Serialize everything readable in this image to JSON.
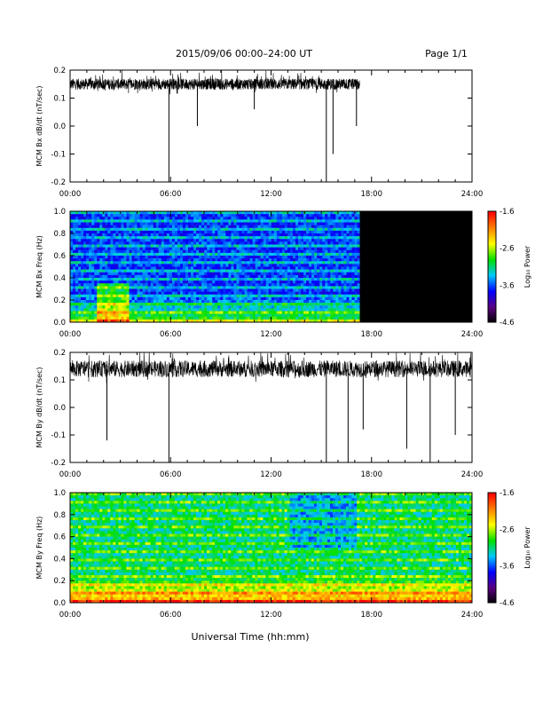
{
  "header": {
    "title": "2015/09/06  00:00–24:00 UT",
    "page": "Page 1/1"
  },
  "footer": {
    "xlabel": "Universal Time (hh:mm)"
  },
  "time_ticks": [
    "00:00",
    "06:00",
    "12:00",
    "18:00",
    "24:00"
  ],
  "colorbar": {
    "label": "Log₁₀ Power",
    "tick_labels": [
      "-1.6",
      "-2.6",
      "-3.6",
      "-4.6"
    ],
    "colors": [
      "#000000",
      "#5a0080",
      "#0000ff",
      "#00c8ff",
      "#00e000",
      "#ffff00",
      "#ff8000",
      "#ff0000"
    ]
  },
  "chart_data": [
    {
      "type": "line",
      "ylabel": "MCM Bx dB/dt (nT/sec)",
      "xlim": [
        0,
        24
      ],
      "ylim": [
        -0.2,
        0.2
      ],
      "yticks": [
        "0.2",
        "0.1",
        "0.0",
        "-0.1",
        "-0.2"
      ],
      "data_end_hour": 17.3,
      "baseline": 0.15,
      "noise": 0.02,
      "spikes": [
        {
          "hour": 5.9,
          "value": -0.2
        },
        {
          "hour": 7.6,
          "value": 0.0
        },
        {
          "hour": 11.0,
          "value": 0.06
        },
        {
          "hour": 15.3,
          "value": -0.2
        },
        {
          "hour": 15.7,
          "value": -0.1
        },
        {
          "hour": 17.1,
          "value": 0.0
        }
      ]
    },
    {
      "type": "heatmap",
      "ylabel": "MCM Bx Freq (Hz)",
      "xlim": [
        0,
        24
      ],
      "ylim": [
        0,
        1
      ],
      "yticks": [
        "1.0",
        "0.8",
        "0.6",
        "0.4",
        "0.2",
        "0.0"
      ],
      "data_end_hour": 17.3,
      "zlim": [
        -4.6,
        -1.6
      ],
      "zlabel": "Log₁₀ Power"
    },
    {
      "type": "line",
      "ylabel": "MCM By dB/dt (nT/sec)",
      "xlim": [
        0,
        24
      ],
      "ylim": [
        -0.2,
        0.2
      ],
      "yticks": [
        "0.2",
        "0.1",
        "0.0",
        "-0.1",
        "-0.2"
      ],
      "data_end_hour": 24,
      "baseline": 0.14,
      "noise": 0.03,
      "spikes": [
        {
          "hour": 2.2,
          "value": -0.12
        },
        {
          "hour": 5.9,
          "value": -0.2
        },
        {
          "hour": 15.3,
          "value": -0.2
        },
        {
          "hour": 16.6,
          "value": -0.2
        },
        {
          "hour": 17.5,
          "value": -0.08
        },
        {
          "hour": 20.1,
          "value": -0.15
        },
        {
          "hour": 21.5,
          "value": -0.2
        },
        {
          "hour": 23.0,
          "value": -0.1
        }
      ]
    },
    {
      "type": "heatmap",
      "ylabel": "MCM By Freq (Hz)",
      "xlim": [
        0,
        24
      ],
      "ylim": [
        0,
        1
      ],
      "yticks": [
        "1.0",
        "0.8",
        "0.6",
        "0.4",
        "0.2",
        "0.0"
      ],
      "data_end_hour": 24,
      "zlim": [
        -4.6,
        -1.6
      ],
      "zlabel": "Log₁₀ Power"
    }
  ]
}
